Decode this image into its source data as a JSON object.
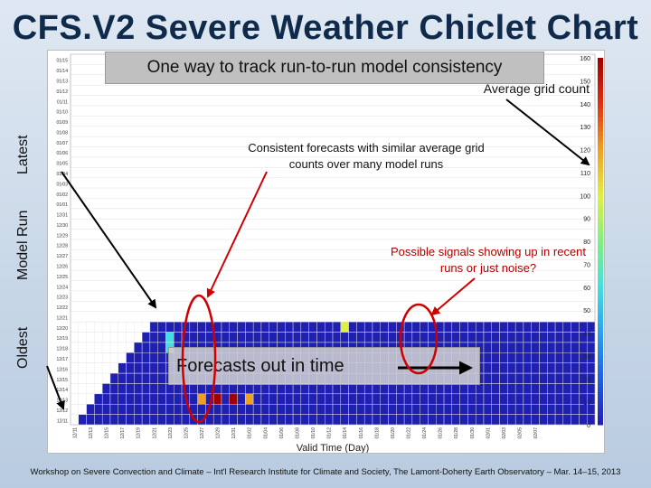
{
  "slide": {
    "title": "CFS.V2 Severe Weather Chiclet Chart",
    "subtitle": "One way to track run-to-run model consistency",
    "colorbar_label": "Average grid count",
    "annotation_consistent": "Consistent forecasts with similar average grid counts over many model runs",
    "annotation_signals": "Possible signals showing up in recent runs or just noise?",
    "forecast_label": "Forecasts out in time",
    "ylabel_outer": "Model Run",
    "ylabel_latest": "Latest",
    "ylabel_oldest": "Oldest",
    "footer": "Workshop on Severe Convection and Climate – Int'l Research Institute for Climate and Society, The Lamont-Doherty Earth Observatory – Mar. 14–15, 2013"
  },
  "chart_data": {
    "type": "heatmap",
    "xlabel": "Valid Time (Day)",
    "x_ticks": [
      "12/11",
      "12/13",
      "12/15",
      "12/17",
      "12/19",
      "12/21",
      "12/23",
      "12/25",
      "12/27",
      "12/29",
      "12/31",
      "01/02",
      "01/04",
      "01/06",
      "01/08",
      "01/10",
      "01/12",
      "01/14",
      "01/16",
      "01/18",
      "01/20",
      "01/22",
      "01/24",
      "01/26",
      "01/28",
      "01/30",
      "02/01",
      "02/03",
      "02/05",
      "02/07"
    ],
    "y_ticks": [
      "12/11",
      "12/12",
      "12/13",
      "12/14",
      "12/15",
      "12/16",
      "12/17",
      "12/18",
      "12/19",
      "12/20",
      "12/21",
      "12/22",
      "12/23",
      "12/24",
      "12/25",
      "12/26",
      "12/27",
      "12/28",
      "12/29",
      "12/30",
      "12/31",
      "01/01",
      "01/02",
      "01/03",
      "01/04",
      "01/05",
      "01/06",
      "01/07",
      "01/08",
      "01/09",
      "01/10",
      "01/11",
      "01/12",
      "01/13",
      "01/14",
      "01/15"
    ],
    "colorbar": {
      "min": 0,
      "max": 160,
      "ticks": [
        0,
        10,
        20,
        30,
        40,
        50,
        60,
        70,
        80,
        90,
        100,
        110,
        120,
        130,
        140,
        150,
        160
      ],
      "colors": [
        "#2020b0",
        "#1f5fe0",
        "#2aa0f0",
        "#40e0e0",
        "#80f080",
        "#e0f040",
        "#f0a020",
        "#e03010",
        "#a00000"
      ]
    },
    "oldest_runs_filled": 10,
    "hot_spots": [
      {
        "run": "12/13",
        "valid": "12/29",
        "value": 150
      },
      {
        "run": "12/13",
        "valid": "12/31",
        "value": 160
      },
      {
        "run": "12/13",
        "valid": "12/27",
        "value": 120
      },
      {
        "run": "12/13",
        "valid": "01/02",
        "value": 110
      },
      {
        "run": "12/21",
        "valid": "01/14",
        "value": 130
      },
      {
        "run": "12/20",
        "valid": "01/14",
        "value": 90
      },
      {
        "run": "12/19",
        "valid": "12/23",
        "value": 60
      },
      {
        "run": "12/18",
        "valid": "12/23",
        "value": 55
      }
    ]
  }
}
